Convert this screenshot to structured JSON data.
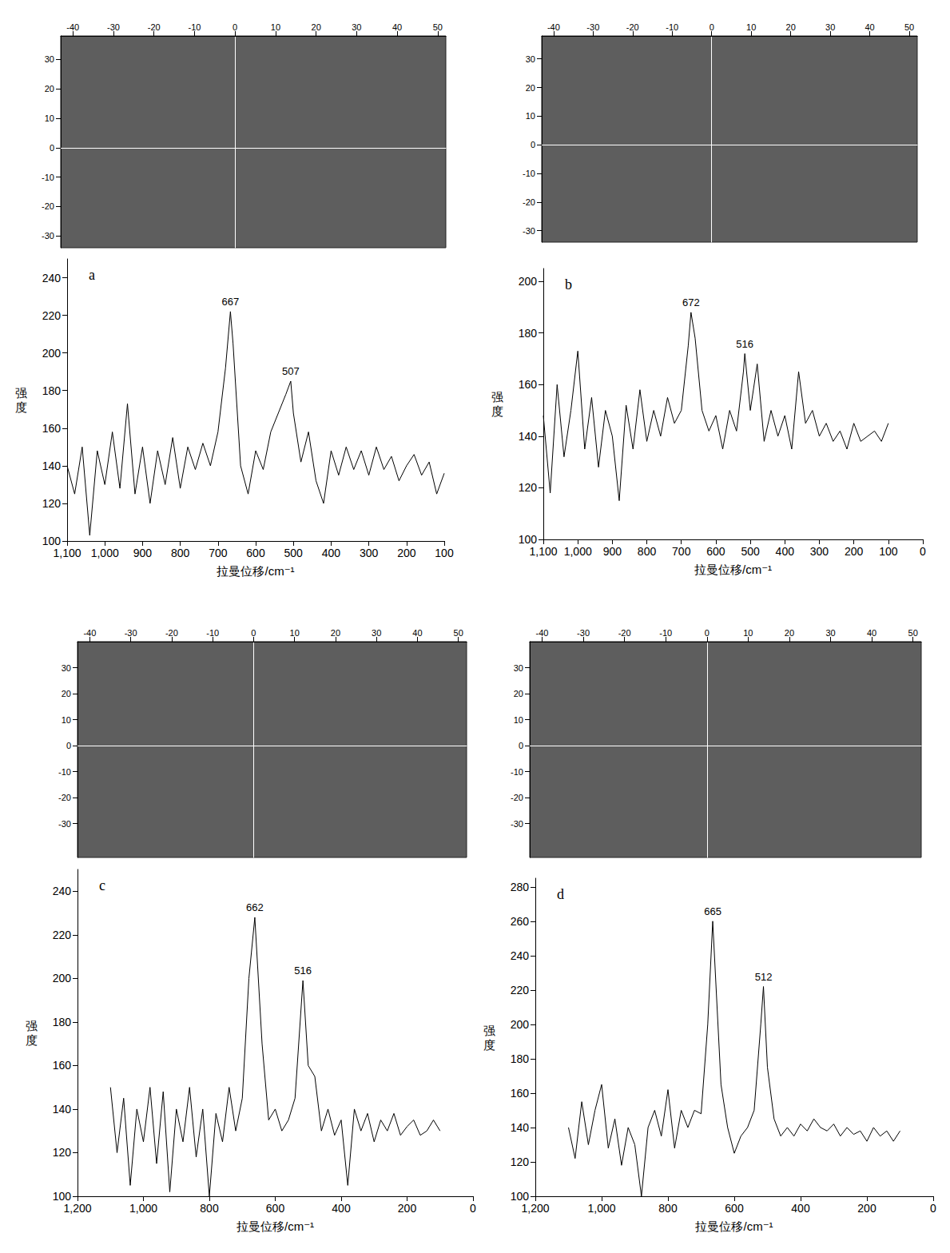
{
  "chart_data": [
    {
      "type": "image",
      "xlim": [
        -43,
        52
      ],
      "ylim": [
        -34,
        38
      ],
      "xticks": [
        -40,
        -30,
        -20,
        -10,
        0,
        10,
        20,
        30,
        40,
        50
      ],
      "yticks": [
        -30,
        -20,
        -10,
        0,
        10,
        20,
        30
      ],
      "grid": false
    },
    {
      "type": "line",
      "panel": "a",
      "xlabel": "拉曼位移/cm⁻¹",
      "ylabel": "强度",
      "color": "#000000",
      "line_style": "solid",
      "grid": false,
      "xlim": [
        1100,
        100
      ],
      "ylim": [
        100,
        250
      ],
      "xticks": [
        1100,
        1000,
        900,
        800,
        700,
        600,
        500,
        400,
        300,
        200,
        100
      ],
      "yticks": [
        100,
        120,
        140,
        160,
        180,
        200,
        220,
        240
      ],
      "x": [
        1100,
        1080,
        1060,
        1040,
        1020,
        1000,
        980,
        960,
        940,
        920,
        900,
        880,
        860,
        840,
        820,
        800,
        780,
        760,
        740,
        720,
        700,
        680,
        667,
        660,
        640,
        620,
        600,
        580,
        560,
        540,
        520,
        507,
        500,
        480,
        460,
        440,
        420,
        400,
        380,
        360,
        340,
        320,
        300,
        280,
        260,
        240,
        220,
        200,
        180,
        160,
        140,
        120,
        100
      ],
      "values": [
        140,
        125,
        150,
        103,
        148,
        130,
        158,
        128,
        173,
        125,
        150,
        120,
        148,
        130,
        155,
        128,
        150,
        138,
        152,
        140,
        158,
        192,
        222,
        205,
        140,
        125,
        148,
        138,
        158,
        168,
        178,
        185,
        168,
        142,
        158,
        132,
        120,
        148,
        135,
        150,
        138,
        148,
        135,
        150,
        138,
        145,
        132,
        140,
        146,
        135,
        142,
        125,
        136
      ],
      "annotations": [
        {
          "text": "667",
          "x": 667,
          "y": 222
        },
        {
          "text": "507",
          "x": 507,
          "y": 185
        }
      ]
    },
    {
      "type": "image",
      "xlim": [
        -43,
        52
      ],
      "ylim": [
        -34,
        38
      ],
      "xticks": [
        -40,
        -30,
        -20,
        -10,
        0,
        10,
        20,
        30,
        40,
        50
      ],
      "yticks": [
        -30,
        -20,
        -10,
        0,
        10,
        20,
        30
      ],
      "grid": false
    },
    {
      "type": "line",
      "panel": "b",
      "xlabel": "拉曼位移/cm⁻¹",
      "ylabel": "强度",
      "color": "#000000",
      "line_style": "solid",
      "grid": false,
      "xlim": [
        1100,
        0
      ],
      "ylim": [
        100,
        205
      ],
      "xticks": [
        1100,
        1000,
        900,
        800,
        700,
        600,
        500,
        400,
        300,
        200,
        100,
        0
      ],
      "yticks": [
        100,
        120,
        140,
        160,
        180,
        200
      ],
      "x": [
        1100,
        1080,
        1060,
        1040,
        1020,
        1000,
        980,
        960,
        940,
        920,
        900,
        880,
        860,
        840,
        820,
        800,
        780,
        760,
        740,
        720,
        700,
        680,
        672,
        660,
        640,
        620,
        600,
        580,
        560,
        540,
        520,
        516,
        500,
        480,
        460,
        440,
        420,
        400,
        380,
        360,
        340,
        320,
        300,
        280,
        260,
        240,
        220,
        200,
        180,
        160,
        140,
        120,
        100
      ],
      "values": [
        148,
        118,
        160,
        132,
        150,
        173,
        135,
        155,
        128,
        150,
        140,
        115,
        152,
        135,
        158,
        138,
        150,
        140,
        155,
        145,
        150,
        175,
        188,
        178,
        150,
        142,
        148,
        135,
        150,
        142,
        165,
        172,
        150,
        168,
        138,
        150,
        140,
        148,
        135,
        165,
        145,
        150,
        140,
        145,
        138,
        142,
        135,
        145,
        138,
        140,
        142,
        138,
        145
      ],
      "annotations": [
        {
          "text": "672",
          "x": 672,
          "y": 188
        },
        {
          "text": "516",
          "x": 516,
          "y": 172
        }
      ]
    },
    {
      "type": "image",
      "xlim": [
        -43,
        52
      ],
      "ylim": [
        -43,
        40
      ],
      "xticks": [
        -40,
        -30,
        -20,
        -10,
        0,
        10,
        20,
        30,
        40,
        50
      ],
      "yticks": [
        -30,
        -20,
        -10,
        0,
        10,
        20,
        30
      ],
      "grid": false
    },
    {
      "type": "line",
      "panel": "c",
      "xlabel": "拉曼位移/cm⁻¹",
      "ylabel": "强度",
      "color": "#000000",
      "line_style": "solid",
      "grid": false,
      "xlim": [
        1200,
        0
      ],
      "ylim": [
        100,
        250
      ],
      "xticks": [
        1200,
        1000,
        800,
        600,
        400,
        200,
        0
      ],
      "yticks": [
        100,
        120,
        140,
        160,
        180,
        200,
        220,
        240
      ],
      "x": [
        1100,
        1080,
        1060,
        1040,
        1020,
        1000,
        980,
        960,
        940,
        920,
        900,
        880,
        860,
        840,
        820,
        800,
        780,
        760,
        740,
        720,
        700,
        680,
        662,
        640,
        620,
        600,
        580,
        560,
        540,
        516,
        500,
        480,
        460,
        440,
        420,
        400,
        380,
        360,
        340,
        320,
        300,
        280,
        260,
        240,
        220,
        200,
        180,
        160,
        140,
        120,
        100
      ],
      "values": [
        150,
        120,
        145,
        105,
        140,
        125,
        150,
        115,
        148,
        102,
        140,
        125,
        150,
        118,
        140,
        100,
        138,
        125,
        150,
        130,
        145,
        200,
        228,
        170,
        135,
        140,
        130,
        135,
        145,
        199,
        160,
        155,
        130,
        140,
        128,
        135,
        105,
        140,
        130,
        138,
        125,
        135,
        130,
        138,
        128,
        132,
        135,
        128,
        130,
        135,
        130
      ],
      "annotations": [
        {
          "text": "662",
          "x": 662,
          "y": 228
        },
        {
          "text": "516",
          "x": 516,
          "y": 199
        }
      ]
    },
    {
      "type": "image",
      "xlim": [
        -43,
        52
      ],
      "ylim": [
        -43,
        40
      ],
      "xticks": [
        -40,
        -30,
        -20,
        -10,
        0,
        10,
        20,
        30,
        40,
        50
      ],
      "yticks": [
        -30,
        -20,
        -10,
        0,
        10,
        20,
        30
      ],
      "grid": false
    },
    {
      "type": "line",
      "panel": "d",
      "xlabel": "拉曼位移/cm⁻¹",
      "ylabel": "强度",
      "color": "#000000",
      "line_style": "solid",
      "grid": false,
      "xlim": [
        1200,
        0
      ],
      "ylim": [
        100,
        285
      ],
      "xticks": [
        1200,
        1000,
        800,
        600,
        400,
        200,
        0
      ],
      "yticks": [
        100,
        120,
        140,
        160,
        180,
        200,
        220,
        240,
        260,
        280
      ],
      "x": [
        1100,
        1080,
        1060,
        1040,
        1020,
        1000,
        980,
        960,
        940,
        920,
        900,
        880,
        860,
        840,
        820,
        800,
        780,
        760,
        740,
        720,
        700,
        680,
        665,
        640,
        620,
        600,
        580,
        560,
        540,
        520,
        512,
        500,
        480,
        460,
        440,
        420,
        400,
        380,
        360,
        340,
        320,
        300,
        280,
        260,
        240,
        220,
        200,
        180,
        160,
        140,
        120,
        100
      ],
      "values": [
        140,
        122,
        155,
        130,
        150,
        165,
        128,
        145,
        118,
        140,
        130,
        100,
        140,
        150,
        135,
        162,
        128,
        150,
        140,
        150,
        148,
        200,
        260,
        165,
        140,
        125,
        135,
        140,
        150,
        200,
        222,
        175,
        145,
        135,
        140,
        135,
        142,
        138,
        145,
        140,
        138,
        142,
        135,
        140,
        136,
        138,
        132,
        140,
        135,
        138,
        132,
        138
      ],
      "annotations": [
        {
          "text": "665",
          "x": 665,
          "y": 260
        },
        {
          "text": "512",
          "x": 512,
          "y": 222
        }
      ]
    }
  ]
}
